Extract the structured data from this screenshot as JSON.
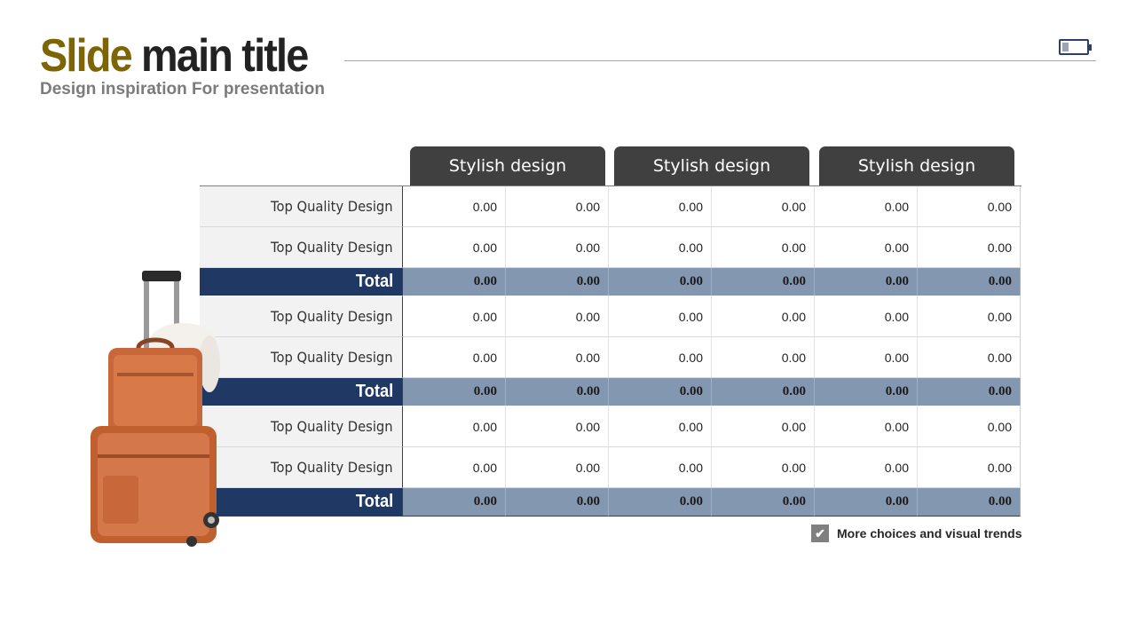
{
  "header": {
    "title_word1": "Slide",
    "title_word2": "main title",
    "subtitle": "Design inspiration For presentation"
  },
  "colors": {
    "accent": "#7d6404",
    "total_label_bg": "#1f3864",
    "total_cell_bg": "#8497b0",
    "header_bg": "#404040"
  },
  "table": {
    "column_headers": [
      "Stylish design",
      "Stylish design",
      "Stylish design"
    ],
    "rows": [
      {
        "label": "Top Quality Design",
        "values": [
          "0.00",
          "0.00",
          "0.00",
          "0.00",
          "0.00",
          "0.00"
        ],
        "total": false
      },
      {
        "label": "Top Quality Design",
        "values": [
          "0.00",
          "0.00",
          "0.00",
          "0.00",
          "0.00",
          "0.00"
        ],
        "total": false
      },
      {
        "label": "Total",
        "values": [
          "0.00",
          "0.00",
          "0.00",
          "0.00",
          "0.00",
          "0.00"
        ],
        "total": true
      },
      {
        "label": "Top Quality Design",
        "values": [
          "0.00",
          "0.00",
          "0.00",
          "0.00",
          "0.00",
          "0.00"
        ],
        "total": false
      },
      {
        "label": "Top Quality Design",
        "values": [
          "0.00",
          "0.00",
          "0.00",
          "0.00",
          "0.00",
          "0.00"
        ],
        "total": false
      },
      {
        "label": "Total",
        "values": [
          "0.00",
          "0.00",
          "0.00",
          "0.00",
          "0.00",
          "0.00"
        ],
        "total": true
      },
      {
        "label": "Top Quality Design",
        "values": [
          "0.00",
          "0.00",
          "0.00",
          "0.00",
          "0.00",
          "0.00"
        ],
        "total": false
      },
      {
        "label": "Top Quality Design",
        "values": [
          "0.00",
          "0.00",
          "0.00",
          "0.00",
          "0.00",
          "0.00"
        ],
        "total": false
      },
      {
        "label": "Total",
        "values": [
          "0.00",
          "0.00",
          "0.00",
          "0.00",
          "0.00",
          "0.00"
        ],
        "total": true
      }
    ]
  },
  "legend": {
    "icon": "checkmark-icon",
    "text": "More choices and visual trends"
  },
  "icons": {
    "battery": "battery-icon",
    "luggage": "luggage-illustration"
  }
}
